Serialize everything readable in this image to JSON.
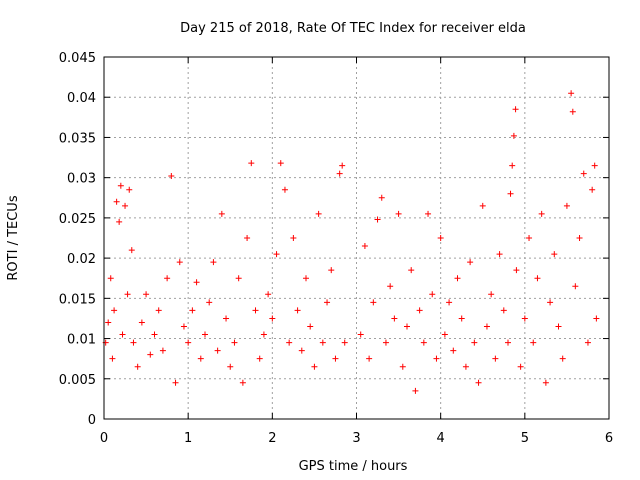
{
  "chart_data": {
    "type": "scatter",
    "title": "Day 215 of 2018, Rate Of TEC Index for receiver elda",
    "xlabel": "GPS time / hours",
    "ylabel": "ROTI / TECUs",
    "xlim": [
      0,
      6
    ],
    "ylim": [
      0,
      0.045
    ],
    "x_ticks": [
      0,
      1,
      2,
      3,
      4,
      5,
      6
    ],
    "x_tick_labels": [
      "0",
      "1",
      "2",
      "3",
      "4",
      "5",
      "6"
    ],
    "y_ticks": [
      0,
      0.005,
      0.01,
      0.015,
      0.02,
      0.025,
      0.03,
      0.035,
      0.04,
      0.045
    ],
    "y_tick_labels": [
      "0",
      "0.005",
      "0.01",
      "0.015",
      "0.02",
      "0.025",
      "0.03",
      "0.035",
      "0.04",
      "0.045"
    ],
    "grid": true,
    "marker": "+",
    "color": "#ff0000",
    "series": [
      {
        "name": "ROTI",
        "points": [
          [
            0.02,
            0.0095
          ],
          [
            0.05,
            0.012
          ],
          [
            0.08,
            0.0175
          ],
          [
            0.1,
            0.0075
          ],
          [
            0.12,
            0.0135
          ],
          [
            0.15,
            0.027
          ],
          [
            0.18,
            0.0245
          ],
          [
            0.2,
            0.029
          ],
          [
            0.22,
            0.0105
          ],
          [
            0.25,
            0.0265
          ],
          [
            0.28,
            0.0155
          ],
          [
            0.3,
            0.0285
          ],
          [
            0.33,
            0.021
          ],
          [
            0.35,
            0.0095
          ],
          [
            0.4,
            0.0065
          ],
          [
            0.45,
            0.012
          ],
          [
            0.5,
            0.0155
          ],
          [
            0.55,
            0.008
          ],
          [
            0.6,
            0.0105
          ],
          [
            0.65,
            0.0135
          ],
          [
            0.7,
            0.0085
          ],
          [
            0.75,
            0.0175
          ],
          [
            0.8,
            0.0302
          ],
          [
            0.85,
            0.0045
          ],
          [
            0.9,
            0.0195
          ],
          [
            0.95,
            0.0115
          ],
          [
            1.0,
            0.0095
          ],
          [
            1.05,
            0.0135
          ],
          [
            1.1,
            0.017
          ],
          [
            1.15,
            0.0075
          ],
          [
            1.2,
            0.0105
          ],
          [
            1.25,
            0.0145
          ],
          [
            1.3,
            0.0195
          ],
          [
            1.35,
            0.0085
          ],
          [
            1.4,
            0.0255
          ],
          [
            1.45,
            0.0125
          ],
          [
            1.5,
            0.0065
          ],
          [
            1.55,
            0.0095
          ],
          [
            1.6,
            0.0175
          ],
          [
            1.65,
            0.0045
          ],
          [
            1.7,
            0.0225
          ],
          [
            1.75,
            0.0318
          ],
          [
            1.8,
            0.0135
          ],
          [
            1.85,
            0.0075
          ],
          [
            1.9,
            0.0105
          ],
          [
            1.95,
            0.0155
          ],
          [
            2.0,
            0.0125
          ],
          [
            2.05,
            0.0205
          ],
          [
            2.1,
            0.0318
          ],
          [
            2.15,
            0.0285
          ],
          [
            2.2,
            0.0095
          ],
          [
            2.25,
            0.0225
          ],
          [
            2.3,
            0.0135
          ],
          [
            2.35,
            0.0085
          ],
          [
            2.4,
            0.0175
          ],
          [
            2.45,
            0.0115
          ],
          [
            2.5,
            0.0065
          ],
          [
            2.55,
            0.0255
          ],
          [
            2.6,
            0.0095
          ],
          [
            2.65,
            0.0145
          ],
          [
            2.7,
            0.0185
          ],
          [
            2.75,
            0.0075
          ],
          [
            2.8,
            0.0305
          ],
          [
            2.83,
            0.0315
          ],
          [
            2.86,
            0.0095
          ],
          [
            3.05,
            0.0105
          ],
          [
            3.1,
            0.0215
          ],
          [
            3.15,
            0.0075
          ],
          [
            3.2,
            0.0145
          ],
          [
            3.25,
            0.0248
          ],
          [
            3.3,
            0.0275
          ],
          [
            3.35,
            0.0095
          ],
          [
            3.4,
            0.0165
          ],
          [
            3.45,
            0.0125
          ],
          [
            3.5,
            0.0255
          ],
          [
            3.55,
            0.0065
          ],
          [
            3.6,
            0.0115
          ],
          [
            3.65,
            0.0185
          ],
          [
            3.7,
            0.0035
          ],
          [
            3.75,
            0.0135
          ],
          [
            3.8,
            0.0095
          ],
          [
            3.85,
            0.0255
          ],
          [
            3.9,
            0.0155
          ],
          [
            3.95,
            0.0075
          ],
          [
            4.0,
            0.0225
          ],
          [
            4.05,
            0.0105
          ],
          [
            4.1,
            0.0145
          ],
          [
            4.15,
            0.0085
          ],
          [
            4.2,
            0.0175
          ],
          [
            4.25,
            0.0125
          ],
          [
            4.3,
            0.0065
          ],
          [
            4.35,
            0.0195
          ],
          [
            4.4,
            0.0095
          ],
          [
            4.45,
            0.0045
          ],
          [
            4.5,
            0.0265
          ],
          [
            4.55,
            0.0115
          ],
          [
            4.6,
            0.0155
          ],
          [
            4.65,
            0.0075
          ],
          [
            4.7,
            0.0205
          ],
          [
            4.75,
            0.0135
          ],
          [
            4.8,
            0.0095
          ],
          [
            4.83,
            0.028
          ],
          [
            4.85,
            0.0315
          ],
          [
            4.87,
            0.0352
          ],
          [
            4.89,
            0.0385
          ],
          [
            4.9,
            0.0185
          ],
          [
            4.95,
            0.0065
          ],
          [
            5.0,
            0.0125
          ],
          [
            5.05,
            0.0225
          ],
          [
            5.1,
            0.0095
          ],
          [
            5.15,
            0.0175
          ],
          [
            5.2,
            0.0255
          ],
          [
            5.25,
            0.0045
          ],
          [
            5.3,
            0.0145
          ],
          [
            5.35,
            0.0205
          ],
          [
            5.4,
            0.0115
          ],
          [
            5.45,
            0.0075
          ],
          [
            5.5,
            0.0265
          ],
          [
            5.55,
            0.0405
          ],
          [
            5.57,
            0.0382
          ],
          [
            5.6,
            0.0165
          ],
          [
            5.65,
            0.0225
          ],
          [
            5.7,
            0.0305
          ],
          [
            5.75,
            0.0095
          ],
          [
            5.8,
            0.0285
          ],
          [
            5.83,
            0.0315
          ],
          [
            5.85,
            0.0125
          ]
        ]
      }
    ]
  }
}
